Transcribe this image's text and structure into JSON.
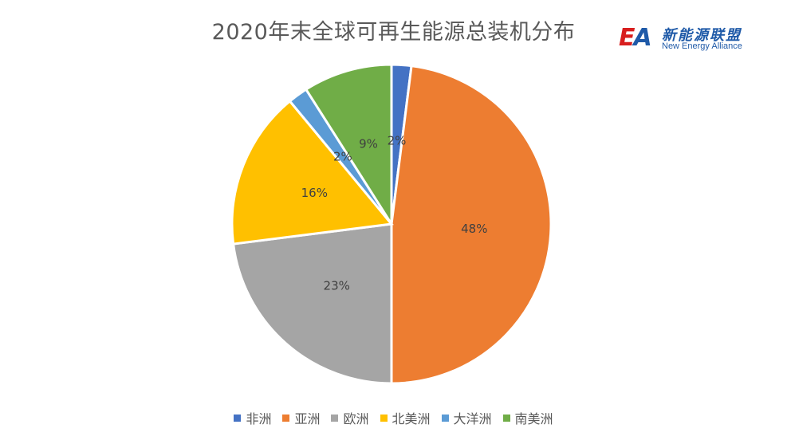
{
  "chart_data": {
    "type": "pie",
    "title": "2020年末全球可再生能源总装机分布",
    "categories": [
      "非洲",
      "亚洲",
      "欧洲",
      "北美洲",
      "大洋洲",
      "南美洲"
    ],
    "values": [
      2,
      48,
      23,
      16,
      2,
      9
    ],
    "labels": [
      "2%",
      "48%",
      "23%",
      "16%",
      "2%",
      "9%"
    ],
    "colors": [
      "#4472c4",
      "#ed7d31",
      "#a5a5a5",
      "#ffc000",
      "#5b9bd5",
      "#70ad47"
    ],
    "legend_position": "bottom"
  },
  "logo": {
    "mark": "EA",
    "cn": "新能源联盟",
    "en": "New Energy Alliance"
  }
}
